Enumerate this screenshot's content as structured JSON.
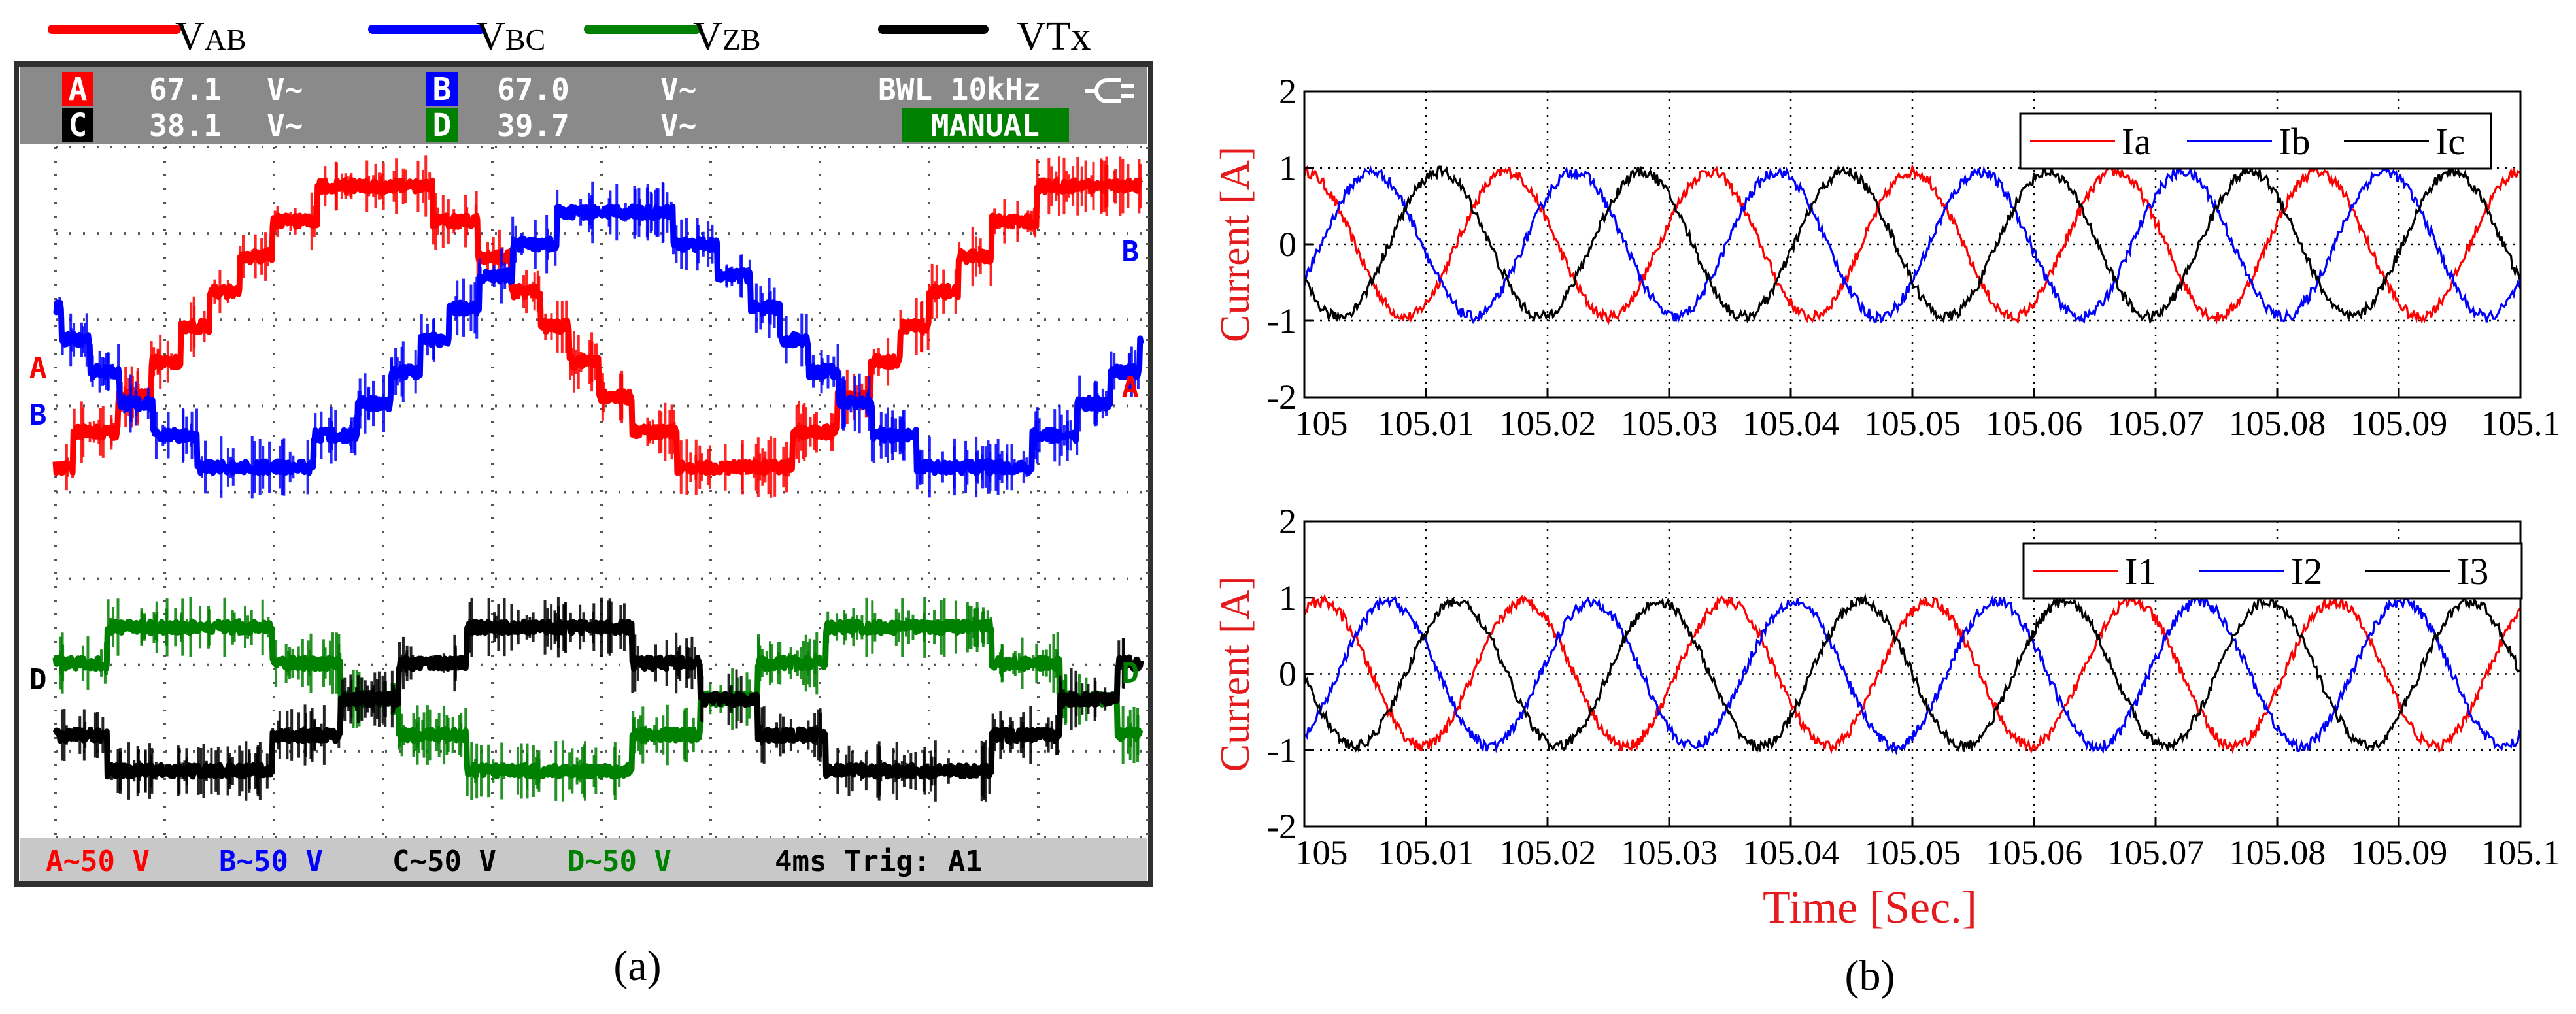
{
  "panel_a": {
    "caption": "(a)",
    "legend": [
      {
        "id": "vab",
        "label_main": "V",
        "label_sub": "AB",
        "color": "#ff0000"
      },
      {
        "id": "vbc",
        "label_main": "V",
        "label_sub": "BC",
        "color": "#0000ff"
      },
      {
        "id": "vzb",
        "label_main": "V",
        "label_sub": "ZB",
        "color": "#008000"
      },
      {
        "id": "vtx",
        "label_main": "VTx",
        "label_sub": "",
        "color": "#000000"
      }
    ],
    "scope": {
      "row1": {
        "ch_a": "A",
        "val_a": "67.1",
        "unit_a": "V~",
        "ch_b": "B",
        "val_b": "67.0",
        "unit_b": "V~",
        "bwl": "BWL 10kHz"
      },
      "row2": {
        "ch_c": "C",
        "val_c": "38.1",
        "unit_c": "V~",
        "ch_d": "D",
        "val_d": "39.7",
        "unit_d": "V~",
        "mode": "MANUAL"
      },
      "footer": {
        "a": "A~50 V",
        "b": "B~50 V",
        "c": "C~50 V",
        "d": "D~50 V",
        "time": "4ms Trig: A1"
      },
      "markers": {
        "a_left": "A",
        "b_left": "B",
        "d_left": "D",
        "b_right": "B",
        "a_right": "A",
        "d_right": "D"
      },
      "colors": {
        "bar": "#8a8a8a",
        "ch_a": "#ff0000",
        "ch_b": "#0000ff",
        "ch_c": "#000000",
        "ch_d": "#008000",
        "bottom_bar": "#c8c8c8"
      }
    }
  },
  "panel_b": {
    "caption": "(b)",
    "xlabel": "Time [Sec.]",
    "label_color": "#e41a1c"
  },
  "chart_data": [
    {
      "type": "line",
      "title": "",
      "xlabel": "",
      "ylabel": "Current [A]",
      "xlim": [
        105,
        105.1
      ],
      "ylim": [
        -2,
        2
      ],
      "x_ticks": [
        "105",
        "105.01",
        "105.02",
        "105.03",
        "105.04",
        "105.05",
        "105.06",
        "105.07",
        "105.08",
        "105.09",
        "105.1"
      ],
      "y_ticks": [
        "2",
        "1",
        "0",
        "-1",
        "-2"
      ],
      "grid": "dotted",
      "legend_position": "top-right",
      "series": [
        {
          "name": "Ia",
          "color": "#ff0000",
          "amplitude": 0.95,
          "frequency_hz": 60,
          "phase_deg": 90
        },
        {
          "name": "Ib",
          "color": "#0000ff",
          "amplitude": 0.95,
          "frequency_hz": 60,
          "phase_deg": -30
        },
        {
          "name": "Ic",
          "color": "#000000",
          "amplitude": 0.95,
          "frequency_hz": 60,
          "phase_deg": 210
        }
      ]
    },
    {
      "type": "line",
      "title": "",
      "xlabel": "Time [Sec.]",
      "ylabel": "Current [A]",
      "xlim": [
        105,
        105.1
      ],
      "ylim": [
        -2,
        2
      ],
      "x_ticks": [
        "105",
        "105.01",
        "105.02",
        "105.03",
        "105.04",
        "105.05",
        "105.06",
        "105.07",
        "105.08",
        "105.09",
        "105.1"
      ],
      "y_ticks": [
        "2",
        "1",
        "0",
        "-1",
        "-2"
      ],
      "grid": "dotted",
      "legend_position": "top-right",
      "series": [
        {
          "name": "I1",
          "color": "#ff0000",
          "amplitude": 0.95,
          "frequency_hz": 60,
          "phase_deg": 60
        },
        {
          "name": "I2",
          "color": "#0000ff",
          "amplitude": 0.95,
          "frequency_hz": 60,
          "phase_deg": -60
        },
        {
          "name": "I3",
          "color": "#000000",
          "amplitude": 0.95,
          "frequency_hz": 60,
          "phase_deg": 180
        }
      ]
    }
  ]
}
